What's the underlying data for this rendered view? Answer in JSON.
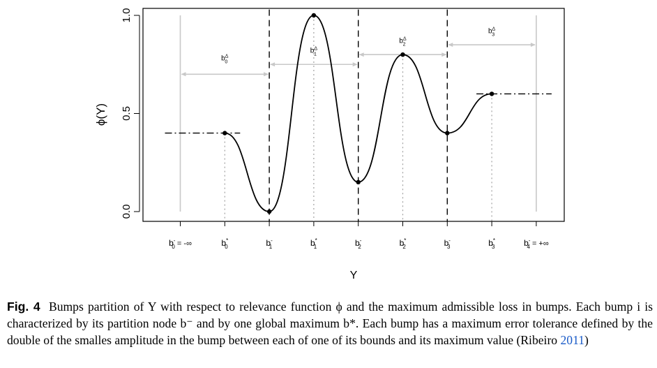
{
  "chart_data": {
    "type": "line",
    "xlabel": "Y",
    "ylabel": "ϕ(Y)",
    "ylim": [
      0,
      1
    ],
    "yticks": [
      "0.0",
      "0.5",
      "1.0"
    ],
    "grid": false,
    "x_ticks": [
      {
        "id": "b0m",
        "x": 1,
        "base": "b",
        "sup": "-",
        "sub": "0",
        "suffix": " = -∞"
      },
      {
        "id": "b0s",
        "x": 2,
        "base": "b",
        "sup": "*",
        "sub": "0",
        "suffix": ""
      },
      {
        "id": "b1m",
        "x": 3,
        "base": "b",
        "sup": "-",
        "sub": "1",
        "suffix": ""
      },
      {
        "id": "b1s",
        "x": 4,
        "base": "b",
        "sup": "*",
        "sub": "1",
        "suffix": ""
      },
      {
        "id": "b2m",
        "x": 5,
        "base": "b",
        "sup": "-",
        "sub": "2",
        "suffix": ""
      },
      {
        "id": "b2s",
        "x": 6,
        "base": "b",
        "sup": "*",
        "sub": "2",
        "suffix": ""
      },
      {
        "id": "b3m",
        "x": 7,
        "base": "b",
        "sup": "-",
        "sub": "3",
        "suffix": ""
      },
      {
        "id": "b3s",
        "x": 8,
        "base": "b",
        "sup": "*",
        "sub": "3",
        "suffix": ""
      },
      {
        "id": "b4m",
        "x": 9,
        "base": "b",
        "sup": "-",
        "sub": "4",
        "suffix": " = +∞"
      }
    ],
    "points": [
      {
        "x": 2,
        "y": 0.4
      },
      {
        "x": 3,
        "y": 0.0
      },
      {
        "x": 4,
        "y": 1.0
      },
      {
        "x": 5,
        "y": 0.15
      },
      {
        "x": 6,
        "y": 0.8
      },
      {
        "x": 7,
        "y": 0.4
      },
      {
        "x": 8,
        "y": 0.6
      }
    ],
    "extensions": [
      {
        "from_x": 1,
        "to_x": 2,
        "y": 0.4
      },
      {
        "from_x": 8,
        "to_x": 9,
        "y": 0.6
      }
    ],
    "bump_tolerances": [
      {
        "label_base": "b",
        "label_sup": "Δ",
        "label_sub": "0",
        "from_x": 1,
        "to_x": 3,
        "y": 0.7,
        "label_y": 0.77
      },
      {
        "label_base": "b",
        "label_sup": "Δ",
        "label_sub": "1",
        "from_x": 3,
        "to_x": 5,
        "y": 0.75,
        "label_y": 0.81
      },
      {
        "label_base": "b",
        "label_sup": "Δ",
        "label_sub": "2",
        "from_x": 5,
        "to_x": 7,
        "y": 0.8,
        "label_y": 0.86
      },
      {
        "label_base": "b",
        "label_sup": "Δ",
        "label_sub": "3",
        "from_x": 7,
        "to_x": 9,
        "y": 0.85,
        "label_y": 0.91
      }
    ],
    "colors": {
      "curve": "#000000",
      "axis": "#000000",
      "light_lines": "#c8c8c8",
      "grey_dotted": "#a0a0a0"
    }
  },
  "caption": {
    "label": "Fig. 4",
    "body": "Bumps partition of Y with respect to relevance function ϕ and the maximum admissible loss in bumps. Each bump i is characterized by its partition node b⁻ and by one global maximum b*. Each bump has a maximum error tolerance defined by the double of the smalles amplitude in the bump between each of one of its bounds and its maximum value (Ribeiro ",
    "cite_year": "2011",
    "tail": ")"
  }
}
